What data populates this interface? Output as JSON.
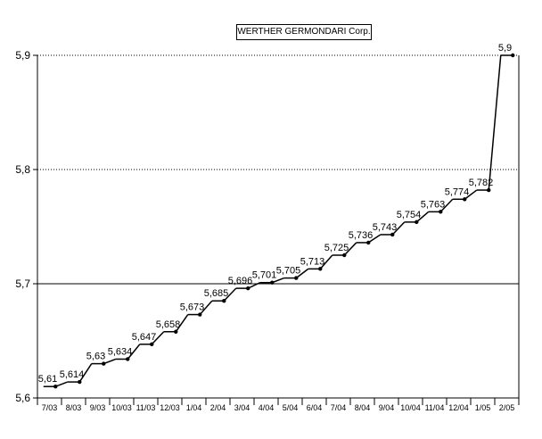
{
  "chart_data": {
    "type": "line",
    "title": "WERTHER GERMONDARI Corp.",
    "xlabel": "",
    "ylabel": "",
    "ylim": [
      5.6,
      5.9
    ],
    "yticks": [
      "5,6",
      "5,7",
      "5,8",
      "5,9"
    ],
    "grid": "horizontal",
    "categories": [
      "7/03",
      "8/03",
      "9/03",
      "10/03",
      "11/03",
      "12/03",
      "1/04",
      "2/04",
      "3/04",
      "4/04",
      "5/04",
      "6/04",
      "7/04",
      "8/04",
      "9/04",
      "10/04",
      "11/04",
      "12/04",
      "1/05",
      "2/05"
    ],
    "values": [
      5.61,
      5.614,
      5.63,
      5.634,
      5.647,
      5.658,
      5.673,
      5.685,
      5.696,
      5.701,
      5.705,
      5.713,
      5.725,
      5.736,
      5.743,
      5.754,
      5.763,
      5.774,
      5.782,
      5.9
    ],
    "data_labels": [
      "5,61",
      "5,614",
      "5,63",
      "5,634",
      "5,647",
      "5,658",
      "5,673",
      "5,685",
      "5,696",
      "5,701",
      "5,705",
      "5,713",
      "5,725",
      "5,736",
      "5,743",
      "5,754",
      "5,763",
      "5,774",
      "5,782",
      "5,9"
    ]
  }
}
